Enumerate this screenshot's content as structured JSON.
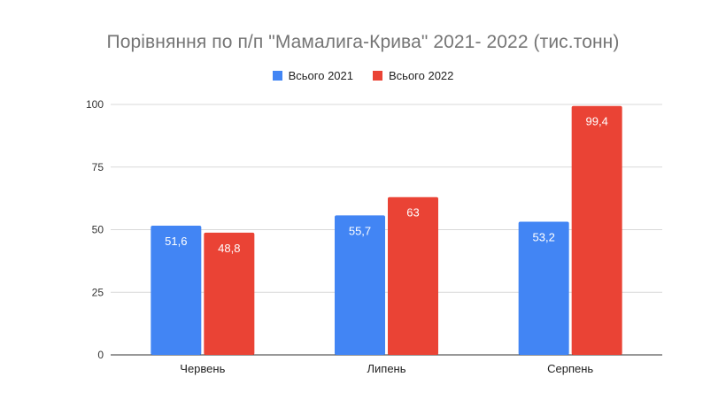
{
  "chart_data": {
    "type": "bar",
    "title": "Порівняння по п/п \"Мамалига-Крива\" 2021- 2022 (тис.тонн)",
    "categories": [
      "Червень",
      "Липень",
      "Серпень"
    ],
    "series": [
      {
        "name": "Всього 2021",
        "color": "#4285f4",
        "values": [
          51.6,
          55.7,
          53.2
        ],
        "labels": [
          "51,6",
          "55,7",
          "53,2"
        ]
      },
      {
        "name": "Всього 2022",
        "color": "#ea4335",
        "values": [
          48.8,
          63,
          99.4
        ],
        "labels": [
          "48,8",
          "63",
          "99,4"
        ]
      }
    ],
    "ylim": [
      0,
      100
    ],
    "yticks": [
      "0",
      "25",
      "50",
      "75",
      "100"
    ],
    "grid": true,
    "legend_position": "top-center"
  }
}
